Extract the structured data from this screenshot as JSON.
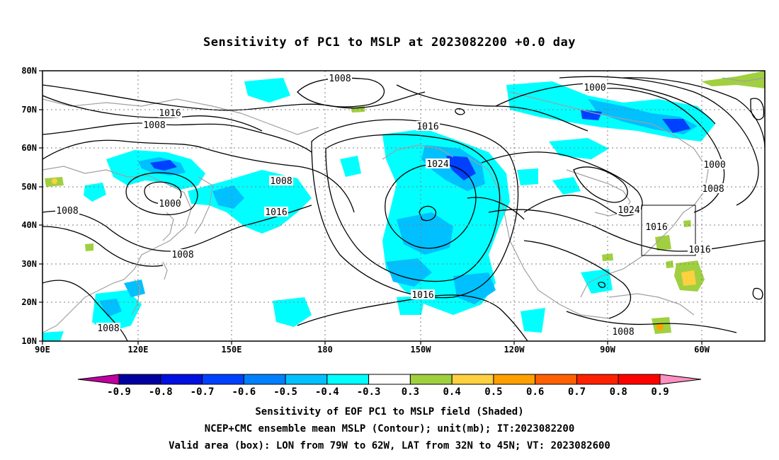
{
  "title": "Sensitivity of PC1 to MSLP at 2023082200 +0.0 day",
  "lat_labels": [
    "80N",
    "70N",
    "60N",
    "50N",
    "40N",
    "30N",
    "20N",
    "10N"
  ],
  "lon_labels": [
    "90E",
    "120E",
    "150E",
    "180",
    "150W",
    "120W",
    "90W",
    "60W"
  ],
  "colorbar": {
    "labels": [
      "-0.9",
      "-0.8",
      "-0.7",
      "-0.6",
      "-0.5",
      "-0.4",
      "-0.3",
      "0.3",
      "0.4",
      "0.5",
      "0.6",
      "0.7",
      "0.8",
      "0.9"
    ],
    "colors": [
      "#c000a0",
      "#0000a0",
      "#0010e0",
      "#0040ff",
      "#0080ff",
      "#00c0ff",
      "#00ffff",
      "#ffffff",
      "#a0d040",
      "#ffd040",
      "#ffa000",
      "#ff6000",
      "#ff2000",
      "#ff0000",
      "#ff90c0"
    ]
  },
  "contour_labels": [
    {
      "text": "1008"
    },
    {
      "text": "1016"
    },
    {
      "text": "1008"
    },
    {
      "text": "1008"
    },
    {
      "text": "1000"
    },
    {
      "text": "1008"
    },
    {
      "text": "1016"
    },
    {
      "text": "1008"
    },
    {
      "text": "1008"
    },
    {
      "text": "1016"
    },
    {
      "text": "1024"
    },
    {
      "text": "1016"
    },
    {
      "text": "1000"
    },
    {
      "text": "1000"
    },
    {
      "text": "1008"
    },
    {
      "text": "1024"
    },
    {
      "text": "1016"
    },
    {
      "text": "1016"
    },
    {
      "text": "1008"
    }
  ],
  "valid_box": {
    "lon_from": "79W",
    "lon_to": "62W",
    "lat_from": "32N",
    "lat_to": "45N"
  },
  "footer": {
    "line1": "Sensitivity of EOF PC1 to MSLP field (Shaded)",
    "line2": "NCEP+CMC ensemble mean MSLP (Contour); unit(mb); IT:2023082200",
    "line3": "Valid area (box): LON from 79W to 62W, LAT from 32N to 45N; VT: 2023082600"
  }
}
